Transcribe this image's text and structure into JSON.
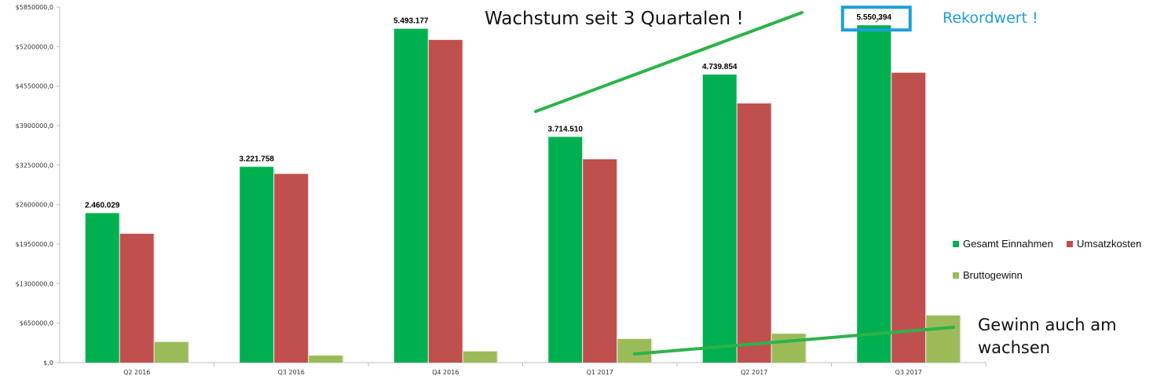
{
  "chart_data": {
    "type": "bar",
    "categories": [
      "Q2 2016",
      "Q3 2016",
      "Q4 2016",
      "Q1 2017",
      "Q2 2017",
      "Q3 2017"
    ],
    "series": [
      {
        "name": "Gesamt Einnahmen",
        "color": "#00b050",
        "values": [
          2460029,
          3221758,
          5493177,
          3714510,
          4739854,
          5550394
        ]
      },
      {
        "name": "Umsatzkosten",
        "color": "#c0504d",
        "values": [
          2120000,
          3105000,
          5310000,
          3345000,
          4265000,
          4770000
        ]
      },
      {
        "name": "Bruttogewinn",
        "color": "#9bbb59",
        "values": [
          340000,
          115000,
          185000,
          390000,
          475000,
          775000
        ]
      }
    ],
    "data_labels": [
      "2.460.029",
      "3.221.758",
      "5.493.177",
      "3.714.510",
      "4.739.854",
      "5.550.394"
    ],
    "y_ticks": [
      {
        "value": 0,
        "label": "$,0"
      },
      {
        "value": 650000,
        "label": "$650000,0"
      },
      {
        "value": 1300000,
        "label": "$1300000,0"
      },
      {
        "value": 1950000,
        "label": "$1950000,0"
      },
      {
        "value": 2600000,
        "label": "$2600000,0"
      },
      {
        "value": 3250000,
        "label": "$3250000,0"
      },
      {
        "value": 3900000,
        "label": "$3900000,0"
      },
      {
        "value": 4550000,
        "label": "$4550000,0"
      },
      {
        "value": 5200000,
        "label": "$5200000,0"
      },
      {
        "value": 5850000,
        "label": "$5850000,0"
      }
    ],
    "ylim": [
      0,
      5850000
    ],
    "grid": false,
    "legend_position": "right"
  },
  "annotations": {
    "growth": "Wachstum seit 3 Quartalen !",
    "record": "Rekordwert !",
    "profit_line1": "Gewinn auch am",
    "profit_line2": "wachsen",
    "highlight_color": "#1e9fd8",
    "trend_color": "#2db34a"
  }
}
